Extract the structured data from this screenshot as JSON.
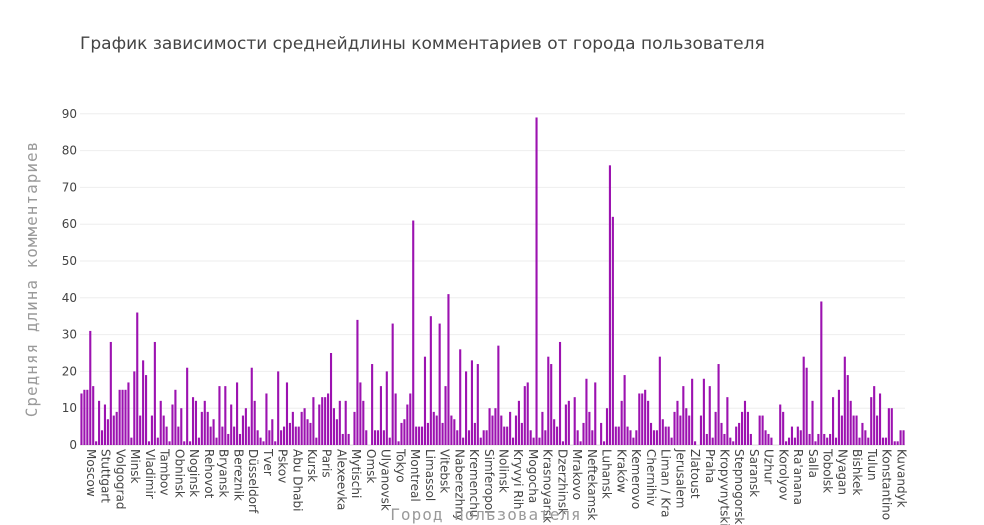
{
  "chart_data": {
    "type": "bar",
    "title": "График зависимости среднейдлины комментариев от города пользователя",
    "xlabel": "Город пользователя",
    "ylabel": "Средняя длина комментариев",
    "ylim": [
      0,
      95
    ],
    "yticks": [
      0,
      10,
      20,
      30,
      40,
      50,
      60,
      70,
      80,
      90
    ],
    "grid": true,
    "color": "#9c12b0",
    "x_tick_labels": [
      "Moscow",
      "Stuttgart",
      "Volgograd",
      "Minsk",
      "Vladimir",
      "Tambov",
      "Obninsk",
      "Noginsk",
      "Rehovot",
      "Bryansk",
      "Bereznik",
      "Düsseldorf",
      "Tver",
      "Pskov",
      "Abu Dhabi",
      "Kursk",
      "Paris",
      "Alexeevka",
      "Mytischi",
      "Omsk",
      "Ulyanovsk",
      "Tokyo",
      "Montreal",
      "Limassol",
      "Vitebsk",
      "Naberezhny",
      "Kremenchu",
      "Simferopol",
      "Nolinsk",
      "Kryvyi Rih",
      "Mogocha",
      "Krasnoyarsk",
      "Dzerzhinsk",
      "Mrakovo",
      "Neftekamsk",
      "Luhansk",
      "Kraków",
      "Kemerovo",
      "Chernihiv",
      "Liman / Kra",
      "Jerusalem",
      "Zlatoust",
      "Praha",
      "Kropyvnytski",
      "Stepnogorsk",
      "Saransk",
      "Uzhur",
      "Korolyov",
      "Ra'anana",
      "Salla",
      "Tobolsk",
      "Nyagan",
      "Bishkek",
      "Tulun",
      "Konstantino",
      "Kuvandyk"
    ],
    "values": [
      14,
      15,
      15,
      31,
      16,
      1,
      12,
      4,
      11,
      7,
      28,
      8,
      9,
      15,
      15,
      15,
      17,
      2,
      20,
      36,
      8,
      23,
      19,
      1,
      8,
      28,
      2,
      12,
      8,
      5,
      1,
      11,
      15,
      5,
      10,
      1,
      21,
      1,
      13,
      12,
      2,
      9,
      12,
      9,
      5,
      7,
      2,
      16,
      5,
      16,
      3,
      11,
      5,
      17,
      3,
      8,
      10,
      5,
      21,
      12,
      4,
      2,
      1,
      14,
      4,
      7,
      1,
      20,
      4,
      5,
      17,
      6,
      9,
      5,
      5,
      9,
      10,
      7,
      6,
      13,
      2,
      11,
      13,
      13,
      14,
      25,
      10,
      7,
      12,
      3,
      12,
      3,
      0,
      9,
      34,
      17,
      12,
      4,
      0,
      22,
      4,
      4,
      16,
      4,
      20,
      2,
      33,
      14,
      1,
      6,
      7,
      11,
      14,
      61,
      5,
      5,
      5,
      24,
      6,
      35,
      9,
      8,
      33,
      6,
      16,
      41,
      8,
      7,
      4,
      26,
      2,
      20,
      4,
      23,
      6,
      22,
      2,
      4,
      4,
      10,
      8,
      10,
      27,
      8,
      5,
      5,
      9,
      2,
      8,
      12,
      6,
      16,
      17,
      4,
      2,
      89,
      2,
      9,
      4,
      24,
      22,
      7,
      5,
      28,
      1,
      11,
      12,
      0,
      13,
      4,
      1,
      6,
      18,
      9,
      4,
      17,
      0,
      6,
      1,
      10,
      76,
      62,
      5,
      5,
      12,
      19,
      5,
      4,
      2,
      4,
      14,
      14,
      15,
      12,
      6,
      4,
      4,
      24,
      7,
      5,
      5,
      2,
      9,
      12,
      8,
      16,
      10,
      8,
      18,
      1,
      0,
      8,
      18,
      3,
      16,
      2,
      9,
      22,
      6,
      3,
      13,
      2,
      1,
      5,
      6,
      9,
      12,
      9,
      3,
      0,
      0,
      8,
      8,
      4,
      3,
      2,
      0,
      0,
      11,
      9,
      1,
      2,
      5,
      2,
      5,
      4,
      24,
      21,
      3,
      12,
      1,
      3,
      39,
      3,
      2,
      3,
      13,
      2,
      15,
      8,
      24,
      19,
      12,
      8,
      8,
      2,
      6,
      4,
      2,
      13,
      16,
      8,
      14,
      2,
      2,
      10,
      10,
      1,
      1,
      4,
      4
    ]
  }
}
